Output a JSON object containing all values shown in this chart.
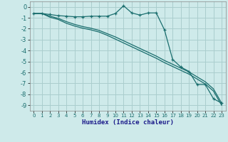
{
  "xlabel": "Humidex (Indice chaleur)",
  "background_color": "#ceeaea",
  "grid_color": "#aacece",
  "line_color": "#1a6e6e",
  "xlim": [
    -0.5,
    23.5
  ],
  "ylim": [
    -9.5,
    0.5
  ],
  "xticks": [
    0,
    1,
    2,
    3,
    4,
    5,
    6,
    7,
    8,
    9,
    10,
    11,
    12,
    13,
    14,
    15,
    16,
    17,
    18,
    19,
    20,
    21,
    22,
    23
  ],
  "yticks": [
    0,
    -1,
    -2,
    -3,
    -4,
    -5,
    -6,
    -7,
    -8,
    -9
  ],
  "line1_x": [
    0,
    1,
    2,
    3,
    4,
    5,
    6,
    7,
    8,
    9,
    10,
    11,
    12,
    13,
    14,
    15,
    16,
    17,
    18,
    19,
    20,
    21,
    22,
    23
  ],
  "line1_y": [
    -0.6,
    -0.6,
    -0.7,
    -0.8,
    -0.85,
    -0.9,
    -0.9,
    -0.85,
    -0.85,
    -0.85,
    -0.6,
    0.1,
    -0.55,
    -0.75,
    -0.55,
    -0.55,
    -2.1,
    -4.8,
    -5.5,
    -5.9,
    -7.1,
    -7.1,
    -8.4,
    -8.8
  ],
  "line2_x": [
    0,
    1,
    2,
    3,
    4,
    5,
    6,
    7,
    8,
    9,
    10,
    11,
    12,
    13,
    14,
    15,
    16,
    17,
    18,
    19,
    20,
    21,
    22,
    23
  ],
  "line2_y": [
    -0.6,
    -0.6,
    -0.85,
    -1.05,
    -1.35,
    -1.6,
    -1.8,
    -1.95,
    -2.15,
    -2.45,
    -2.75,
    -3.1,
    -3.45,
    -3.8,
    -4.15,
    -4.5,
    -4.9,
    -5.25,
    -5.6,
    -5.95,
    -6.4,
    -6.85,
    -7.5,
    -8.8
  ],
  "line3_x": [
    0,
    1,
    2,
    3,
    4,
    5,
    6,
    7,
    8,
    9,
    10,
    11,
    12,
    13,
    14,
    15,
    16,
    17,
    18,
    19,
    20,
    21,
    22,
    23
  ],
  "line3_y": [
    -0.6,
    -0.6,
    -0.95,
    -1.15,
    -1.5,
    -1.75,
    -1.95,
    -2.1,
    -2.3,
    -2.6,
    -2.95,
    -3.3,
    -3.65,
    -4.0,
    -4.35,
    -4.7,
    -5.1,
    -5.45,
    -5.8,
    -6.15,
    -6.6,
    -7.05,
    -7.7,
    -9.0
  ]
}
